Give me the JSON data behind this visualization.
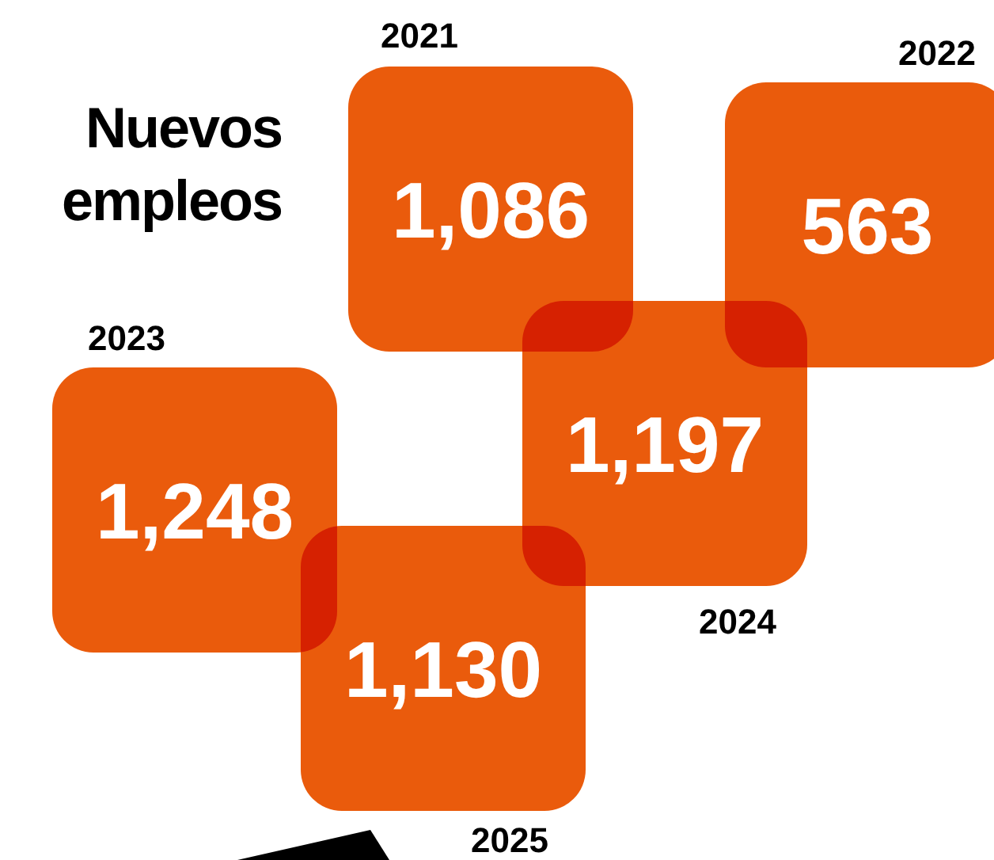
{
  "chart_data": {
    "type": "other",
    "title": "Nuevos empleos",
    "categories": [
      "2021",
      "2022",
      "2023",
      "2024",
      "2025"
    ],
    "values": [
      1086,
      563,
      1248,
      1197,
      1130
    ],
    "value_labels": [
      "1,086",
      "563",
      "1,248",
      "1,197",
      "1,130"
    ],
    "color": "#ea5b0c"
  }
}
